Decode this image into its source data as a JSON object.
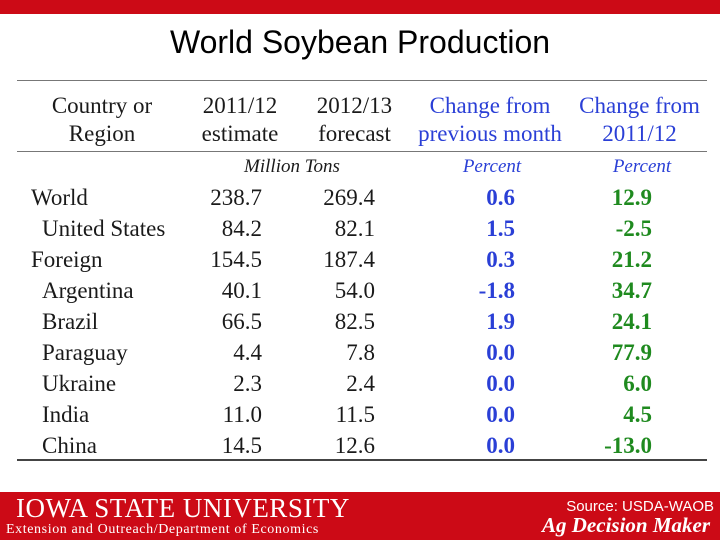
{
  "title": "World Soybean Production",
  "table": {
    "headers": {
      "country": "Country or\nRegion",
      "estimate": "2011/12\nestimate",
      "forecast": "2012/13\nforecast",
      "change_month": "Change from\nprevious month",
      "change_year": "Change from\n2011/12"
    },
    "units": {
      "tons": "Million Tons",
      "pct_month": "Percent",
      "pct_year": "Percent"
    },
    "rows": [
      {
        "name": "World",
        "estimate": "238.7",
        "forecast": "269.4",
        "change_month": "0.6",
        "change_year": "12.9"
      },
      {
        "name": "United States",
        "estimate": "84.2",
        "forecast": "82.1",
        "change_month": "1.5",
        "change_year": "-2.5"
      },
      {
        "name": "Foreign",
        "estimate": "154.5",
        "forecast": "187.4",
        "change_month": "0.3",
        "change_year": "21.2"
      },
      {
        "name": "Argentina",
        "estimate": "40.1",
        "forecast": "54.0",
        "change_month": "-1.8",
        "change_year": "34.7"
      },
      {
        "name": "Brazil",
        "estimate": "66.5",
        "forecast": "82.5",
        "change_month": "1.9",
        "change_year": "24.1"
      },
      {
        "name": "Paraguay",
        "estimate": "4.4",
        "forecast": "7.8",
        "change_month": "0.0",
        "change_year": "77.9"
      },
      {
        "name": "Ukraine",
        "estimate": "2.3",
        "forecast": "2.4",
        "change_month": "0.0",
        "change_year": "6.0"
      },
      {
        "name": "India",
        "estimate": "11.0",
        "forecast": "11.5",
        "change_month": "0.0",
        "change_year": "4.5"
      },
      {
        "name": "China",
        "estimate": "14.5",
        "forecast": "12.6",
        "change_month": "0.0",
        "change_year": "-13.0"
      }
    ]
  },
  "footer": {
    "brand": "IOWA STATE UNIVERSITY",
    "subtitle": "Extension and Outreach/Department of Economics",
    "source": "Source: USDA-WAOB",
    "tagline": "Ag Decision Maker"
  }
}
